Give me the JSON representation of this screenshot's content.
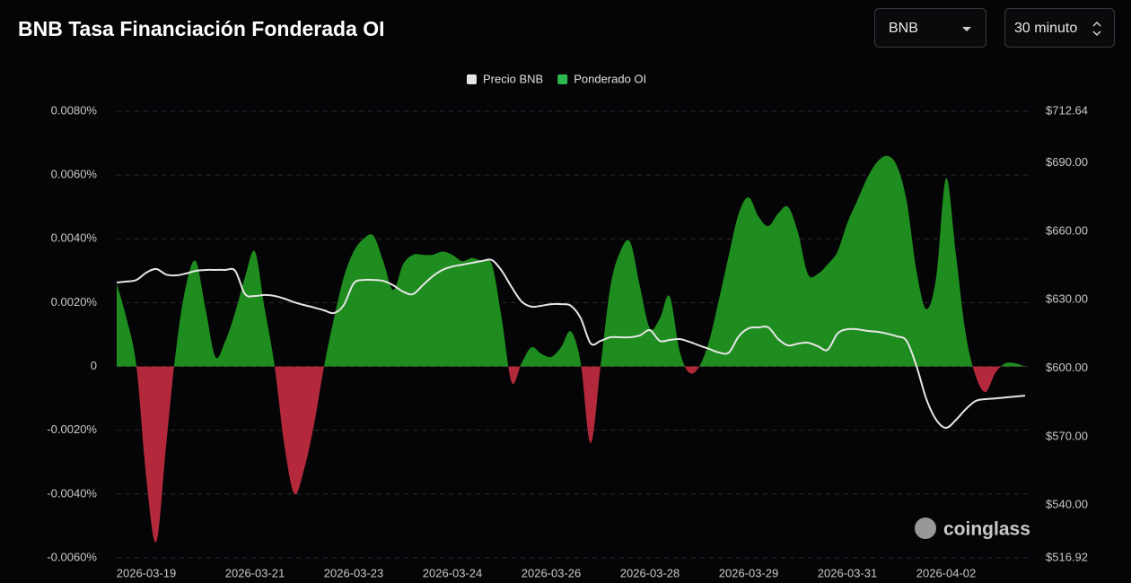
{
  "controls": {
    "symbol": "BNB",
    "interval": "30 minuto"
  },
  "watermark": "coinglass",
  "chart_data": {
    "type": "area-line",
    "title": "BNB Tasa Financiación Fonderada OI",
    "categories": [
      null,
      null,
      null,
      "2026-03-19",
      null,
      null,
      null,
      null,
      null,
      null,
      null,
      null,
      null,
      null,
      "2026-03-21",
      null,
      null,
      null,
      null,
      null,
      null,
      null,
      null,
      null,
      "2026-03-23",
      null,
      null,
      null,
      null,
      null,
      null,
      null,
      null,
      null,
      "2026-03-24",
      null,
      null,
      null,
      null,
      null,
      null,
      null,
      null,
      null,
      "2026-03-26",
      null,
      null,
      null,
      null,
      null,
      null,
      null,
      null,
      null,
      "2026-03-28",
      null,
      null,
      null,
      null,
      null,
      null,
      null,
      null,
      null,
      "2026-03-29",
      null,
      null,
      null,
      null,
      null,
      null,
      null,
      null,
      null,
      "2026-03-31",
      null,
      null,
      null,
      null,
      null,
      null,
      null,
      null,
      null,
      "2026-04-02",
      null,
      null,
      null,
      null,
      null,
      null,
      null,
      null
    ],
    "series": [
      {
        "name": "Precio BNB",
        "color": "#e6e6e6",
        "axis": "y2",
        "values": [
          637.6,
          638.0,
          638.7,
          641.9,
          643.5,
          641.1,
          640.7,
          641.5,
          642.7,
          643.1,
          643.1,
          643.1,
          642.7,
          632.5,
          631.7,
          632.1,
          631.7,
          630.5,
          628.9,
          627.7,
          626.6,
          625.4,
          624.2,
          627.7,
          637.2,
          638.7,
          638.7,
          638.3,
          636.4,
          633.6,
          632.5,
          636.4,
          640.3,
          643.1,
          644.6,
          645.4,
          646.2,
          647.0,
          647.4,
          642.7,
          635.6,
          629.3,
          627.0,
          627.4,
          628.1,
          628.1,
          627.4,
          621.9,
          610.9,
          612.0,
          613.6,
          613.6,
          613.6,
          614.4,
          616.7,
          612.0,
          612.4,
          612.8,
          611.6,
          610.0,
          608.5,
          606.9,
          606.9,
          614.0,
          617.5,
          617.9,
          617.9,
          612.8,
          610.0,
          610.8,
          611.2,
          609.7,
          608.1,
          615.2,
          617.1,
          617.1,
          616.4,
          616.0,
          615.2,
          614.0,
          612.0,
          601.0,
          586.5,
          577.4,
          573.9,
          577.4,
          582.1,
          585.7,
          586.5,
          586.8,
          587.2,
          587.6,
          588.0
        ]
      },
      {
        "name": "Ponderado OI",
        "color": "#1e8c1e",
        "negative_color": "#b3293b",
        "values": [
          0.0026,
          0.0015,
          0,
          -0.0035,
          -0.0055,
          -0.0025,
          0.0005,
          0.0025,
          0.0033,
          0.0018,
          0.0003,
          0.0008,
          0.0017,
          0.0028,
          0.0036,
          0.0018,
          0,
          -0.0025,
          -0.004,
          -0.0032,
          -0.0018,
          0,
          0.0015,
          0.0028,
          0.0036,
          0.004,
          0.0041,
          0.0033,
          0.0024,
          0.0032,
          0.0035,
          0.0035,
          0.0035,
          0.0036,
          0.0035,
          0.0033,
          0.0034,
          0.0033,
          0.0032,
          0.0015,
          -0.0005,
          0.0001,
          0.0006,
          0.0004,
          0.0003,
          0.0006,
          0.0011,
          0.0001,
          -0.0024,
          0,
          0.0025,
          0.0036,
          0.0039,
          0.0025,
          0.0012,
          0.0015,
          0.0022,
          0.0005,
          -0.0002,
          0,
          0.0008,
          0.0021,
          0.0035,
          0.0048,
          0.0053,
          0.0047,
          0.0044,
          0.0048,
          0.005,
          0.0042,
          0.0029,
          0.0029,
          0.0032,
          0.0036,
          0.0045,
          0.0052,
          0.0059,
          0.0064,
          0.0066,
          0.0063,
          0.0052,
          0.003,
          0.0018,
          0.0028,
          0.0059,
          0.0035,
          0.001,
          -0.0003,
          -0.0008,
          -0.0002,
          0.0001,
          0.0001,
          0
        ]
      }
    ],
    "ylim": [
      -0.006,
      0.008
    ],
    "yticks": [
      {
        "value": 0.008,
        "label": "0.0080%"
      },
      {
        "value": 0.006,
        "label": "0.0060%"
      },
      {
        "value": 0.004,
        "label": "0.0040%"
      },
      {
        "value": 0.002,
        "label": "0.0020%"
      },
      0,
      {
        "value": -0.002,
        "label": "-0.0020%"
      },
      {
        "value": -0.004,
        "label": "-0.0040%"
      },
      {
        "value": -0.006,
        "label": "-0.0060%"
      }
    ],
    "y2lim": [
      516.92,
      712.64
    ],
    "y2ticks": [
      {
        "value": 712.64,
        "label": "$712.64"
      },
      {
        "value": 690,
        "label": "$690.00"
      },
      {
        "value": 660,
        "label": "$660.00"
      },
      {
        "value": 630,
        "label": "$630.00"
      },
      {
        "value": 600,
        "label": "$600.00"
      },
      {
        "value": 570,
        "label": "$570.00"
      },
      {
        "value": 540,
        "label": "$540.00"
      },
      {
        "value": 516.92,
        "label": "$516.92"
      }
    ],
    "grid": true,
    "legend": "top"
  }
}
